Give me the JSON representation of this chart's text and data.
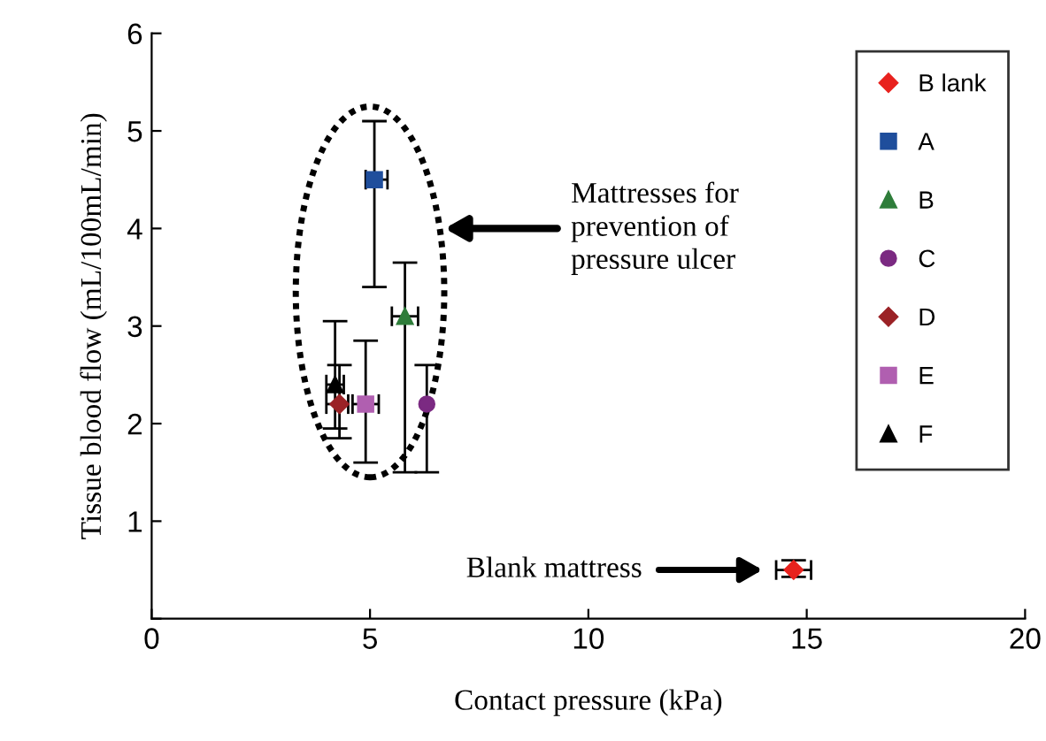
{
  "chart_data": {
    "type": "scatter",
    "xlabel": "Contact pressure (kPa)",
    "ylabel": "Tissue blood flow (mL/100mL/min)",
    "xlim": [
      0,
      20
    ],
    "ylim": [
      0,
      6
    ],
    "xticks": [
      0,
      5,
      10,
      15,
      20
    ],
    "yticks": [
      {
        "value": 0,
        "label": null
      },
      1,
      2,
      3,
      4,
      5,
      6
    ],
    "grid": false,
    "legend": "top right",
    "annotations": [
      "Mattresses for\nprevention of\npressure ulcer",
      "Blank mattress"
    ],
    "series": [
      {
        "name": "B lank",
        "color": "#e8221e",
        "marker": "diamond",
        "x": [
          14.7
        ],
        "values": [
          0.5
        ],
        "errors": [
          [
            0.43,
            0.6
          ]
        ],
        "xerrors": [
          [
            14.3,
            15.1
          ]
        ]
      },
      {
        "name": "A",
        "color": "#1f4e9c",
        "marker": "square",
        "x": [
          5.1
        ],
        "values": [
          4.5
        ],
        "errors": [
          [
            3.4,
            5.1
          ]
        ],
        "xerrors": [
          [
            4.9,
            5.4
          ]
        ]
      },
      {
        "name": "B",
        "color": "#2e7d3a",
        "marker": "triangle",
        "x": [
          5.8
        ],
        "values": [
          3.1
        ],
        "errors": [
          [
            1.5,
            3.65
          ]
        ],
        "xerrors": [
          [
            5.5,
            6.1
          ]
        ]
      },
      {
        "name": "C",
        "color": "#7b2a82",
        "marker": "circle",
        "x": [
          6.3
        ],
        "values": [
          2.2
        ],
        "errors": [
          [
            1.5,
            2.6
          ]
        ],
        "xerrors": [
          null
        ]
      },
      {
        "name": "D",
        "color": "#9b2226",
        "marker": "diamond",
        "x": [
          4.3
        ],
        "values": [
          2.2
        ],
        "errors": [
          [
            1.85,
            2.6
          ]
        ],
        "xerrors": [
          [
            4.0,
            4.5
          ]
        ]
      },
      {
        "name": "E",
        "color": "#b05fb0",
        "marker": "square",
        "x": [
          4.9
        ],
        "values": [
          2.2
        ],
        "errors": [
          [
            1.6,
            2.85
          ]
        ],
        "xerrors": [
          [
            4.6,
            5.2
          ]
        ]
      },
      {
        "name": "F",
        "color": "#000000",
        "marker": "triangle",
        "x": [
          4.2
        ],
        "values": [
          2.4
        ],
        "errors": [
          [
            1.95,
            3.05
          ]
        ],
        "xerrors": [
          [
            4.0,
            4.4
          ]
        ]
      }
    ]
  }
}
